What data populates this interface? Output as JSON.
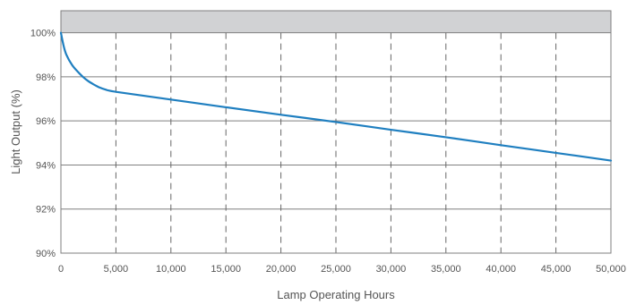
{
  "chart_data": {
    "type": "line",
    "xlabel": "Lamp Operating Hours",
    "ylabel": "Light Output (%)",
    "xlim": [
      0,
      50000
    ],
    "ylim": [
      90,
      101
    ],
    "x_ticks": [
      0,
      5000,
      10000,
      15000,
      20000,
      25000,
      30000,
      35000,
      40000,
      45000,
      50000
    ],
    "x_tick_labels": [
      "0",
      "5,000",
      "10,000",
      "15,000",
      "20,000",
      "25,000",
      "30,000",
      "35,000",
      "40,000",
      "45,000",
      "50,000"
    ],
    "y_ticks": [
      90,
      92,
      94,
      96,
      98,
      100
    ],
    "y_tick_labels": [
      "90%",
      "92%",
      "94%",
      "96%",
      "98%",
      "100%"
    ],
    "grid": {
      "horizontal": "solid",
      "vertical": "dashed"
    },
    "shaded_band": {
      "y_from": 100,
      "y_to": 101,
      "color": "#d1d2d4"
    },
    "series": [
      {
        "color": "#1f7fc0",
        "x": [
          0,
          250,
          500,
          1000,
          1500,
          2000,
          2500,
          3000,
          3500,
          4000,
          5000,
          10000,
          15000,
          20000,
          25000,
          30000,
          35000,
          40000,
          45000,
          50000
        ],
        "y": [
          100.0,
          99.4,
          99.0,
          98.55,
          98.25,
          98.0,
          97.8,
          97.65,
          97.52,
          97.43,
          97.32,
          96.97,
          96.62,
          96.28,
          95.95,
          95.6,
          95.26,
          94.9,
          94.55,
          94.2
        ]
      }
    ]
  }
}
